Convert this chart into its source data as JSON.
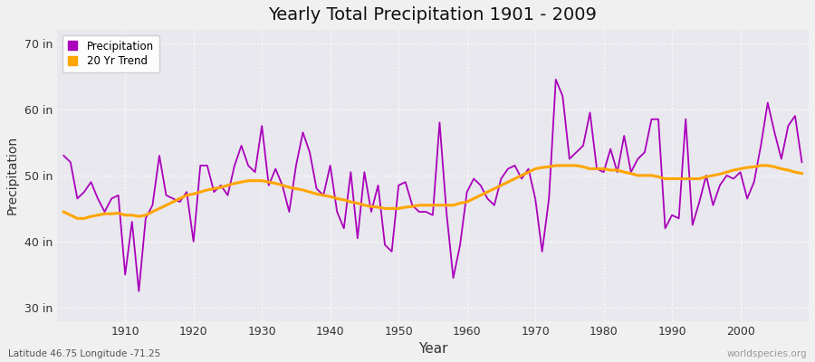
{
  "title": "Yearly Total Precipitation 1901 - 2009",
  "xlabel": "Year",
  "ylabel": "Precipitation",
  "subtitle": "Latitude 46.75 Longitude -71.25",
  "watermark": "worldspecies.org",
  "ylim": [
    28,
    72
  ],
  "yticks": [
    30,
    40,
    50,
    60,
    70
  ],
  "ytick_labels": [
    "30 in",
    "40 in",
    "50 in",
    "60 in",
    "70 in"
  ],
  "xlim": [
    1900,
    2010
  ],
  "precipitation_color": "#AA00BB",
  "trend_color": "#FFA500",
  "bg_color": "#F0F0F0",
  "plot_bg_color": "#E8E8EE",
  "legend_labels": [
    "Precipitation",
    "20 Yr Trend"
  ],
  "years": [
    1901,
    1902,
    1903,
    1904,
    1905,
    1906,
    1907,
    1908,
    1909,
    1910,
    1911,
    1912,
    1913,
    1914,
    1915,
    1916,
    1917,
    1918,
    1919,
    1920,
    1921,
    1922,
    1923,
    1924,
    1925,
    1926,
    1927,
    1928,
    1929,
    1930,
    1931,
    1932,
    1933,
    1934,
    1935,
    1936,
    1937,
    1938,
    1939,
    1940,
    1941,
    1942,
    1943,
    1944,
    1945,
    1946,
    1947,
    1948,
    1949,
    1950,
    1951,
    1952,
    1953,
    1954,
    1955,
    1956,
    1957,
    1958,
    1959,
    1960,
    1961,
    1962,
    1963,
    1964,
    1965,
    1966,
    1967,
    1968,
    1969,
    1970,
    1971,
    1972,
    1973,
    1974,
    1975,
    1976,
    1977,
    1978,
    1979,
    1980,
    1981,
    1982,
    1983,
    1984,
    1985,
    1986,
    1987,
    1988,
    1989,
    1990,
    1991,
    1992,
    1993,
    1994,
    1995,
    1996,
    1997,
    1998,
    1999,
    2000,
    2001,
    2002,
    2003,
    2004,
    2005,
    2006,
    2007,
    2008,
    2009
  ],
  "precip_values": [
    53.0,
    52.0,
    46.5,
    47.5,
    49.0,
    46.5,
    44.5,
    46.5,
    47.0,
    35.0,
    43.0,
    32.5,
    43.5,
    45.5,
    53.0,
    47.0,
    46.5,
    46.0,
    47.5,
    40.0,
    51.5,
    51.5,
    47.5,
    48.5,
    47.0,
    51.5,
    54.5,
    51.5,
    50.5,
    57.5,
    48.5,
    51.0,
    48.5,
    44.5,
    51.5,
    56.5,
    53.5,
    48.0,
    47.0,
    51.5,
    44.5,
    42.0,
    50.5,
    40.5,
    50.5,
    44.5,
    48.5,
    39.5,
    38.5,
    48.5,
    49.0,
    45.5,
    44.5,
    44.5,
    44.0,
    58.0,
    44.5,
    34.5,
    39.5,
    47.5,
    49.5,
    48.5,
    46.5,
    45.5,
    49.5,
    51.0,
    51.5,
    49.5,
    51.0,
    46.5,
    38.5,
    46.5,
    64.5,
    62.0,
    52.5,
    53.5,
    54.5,
    59.5,
    51.0,
    50.5,
    54.0,
    50.5,
    56.0,
    50.5,
    52.5,
    53.5,
    58.5,
    58.5,
    42.0,
    44.0,
    43.5,
    58.5,
    42.5,
    46.0,
    50.0,
    45.5,
    48.5,
    50.0,
    49.5,
    50.5,
    46.5,
    49.0,
    54.5,
    61.0,
    56.5,
    52.5,
    57.5,
    59.0,
    52.0
  ],
  "trend_values": [
    44.5,
    44.0,
    43.5,
    43.5,
    43.8,
    44.0,
    44.2,
    44.2,
    44.3,
    44.0,
    44.0,
    43.8,
    44.0,
    44.5,
    45.0,
    45.5,
    46.0,
    46.5,
    47.0,
    47.2,
    47.5,
    47.8,
    48.0,
    48.2,
    48.5,
    48.8,
    49.0,
    49.2,
    49.2,
    49.2,
    49.0,
    48.8,
    48.5,
    48.2,
    48.0,
    47.8,
    47.5,
    47.2,
    47.0,
    46.8,
    46.5,
    46.3,
    46.0,
    45.8,
    45.5,
    45.3,
    45.2,
    45.0,
    45.0,
    45.0,
    45.2,
    45.3,
    45.5,
    45.5,
    45.5,
    45.5,
    45.5,
    45.5,
    45.8,
    46.0,
    46.5,
    47.0,
    47.5,
    48.0,
    48.5,
    49.0,
    49.5,
    50.0,
    50.5,
    51.0,
    51.2,
    51.3,
    51.5,
    51.5,
    51.5,
    51.5,
    51.3,
    51.0,
    51.0,
    51.0,
    50.8,
    50.8,
    50.5,
    50.3,
    50.0,
    50.0,
    50.0,
    49.8,
    49.5,
    49.5,
    49.5,
    49.5,
    49.5,
    49.5,
    49.8,
    50.0,
    50.2,
    50.5,
    50.8,
    51.0,
    51.2,
    51.3,
    51.5,
    51.5,
    51.3,
    51.0,
    50.8,
    50.5,
    50.3
  ]
}
